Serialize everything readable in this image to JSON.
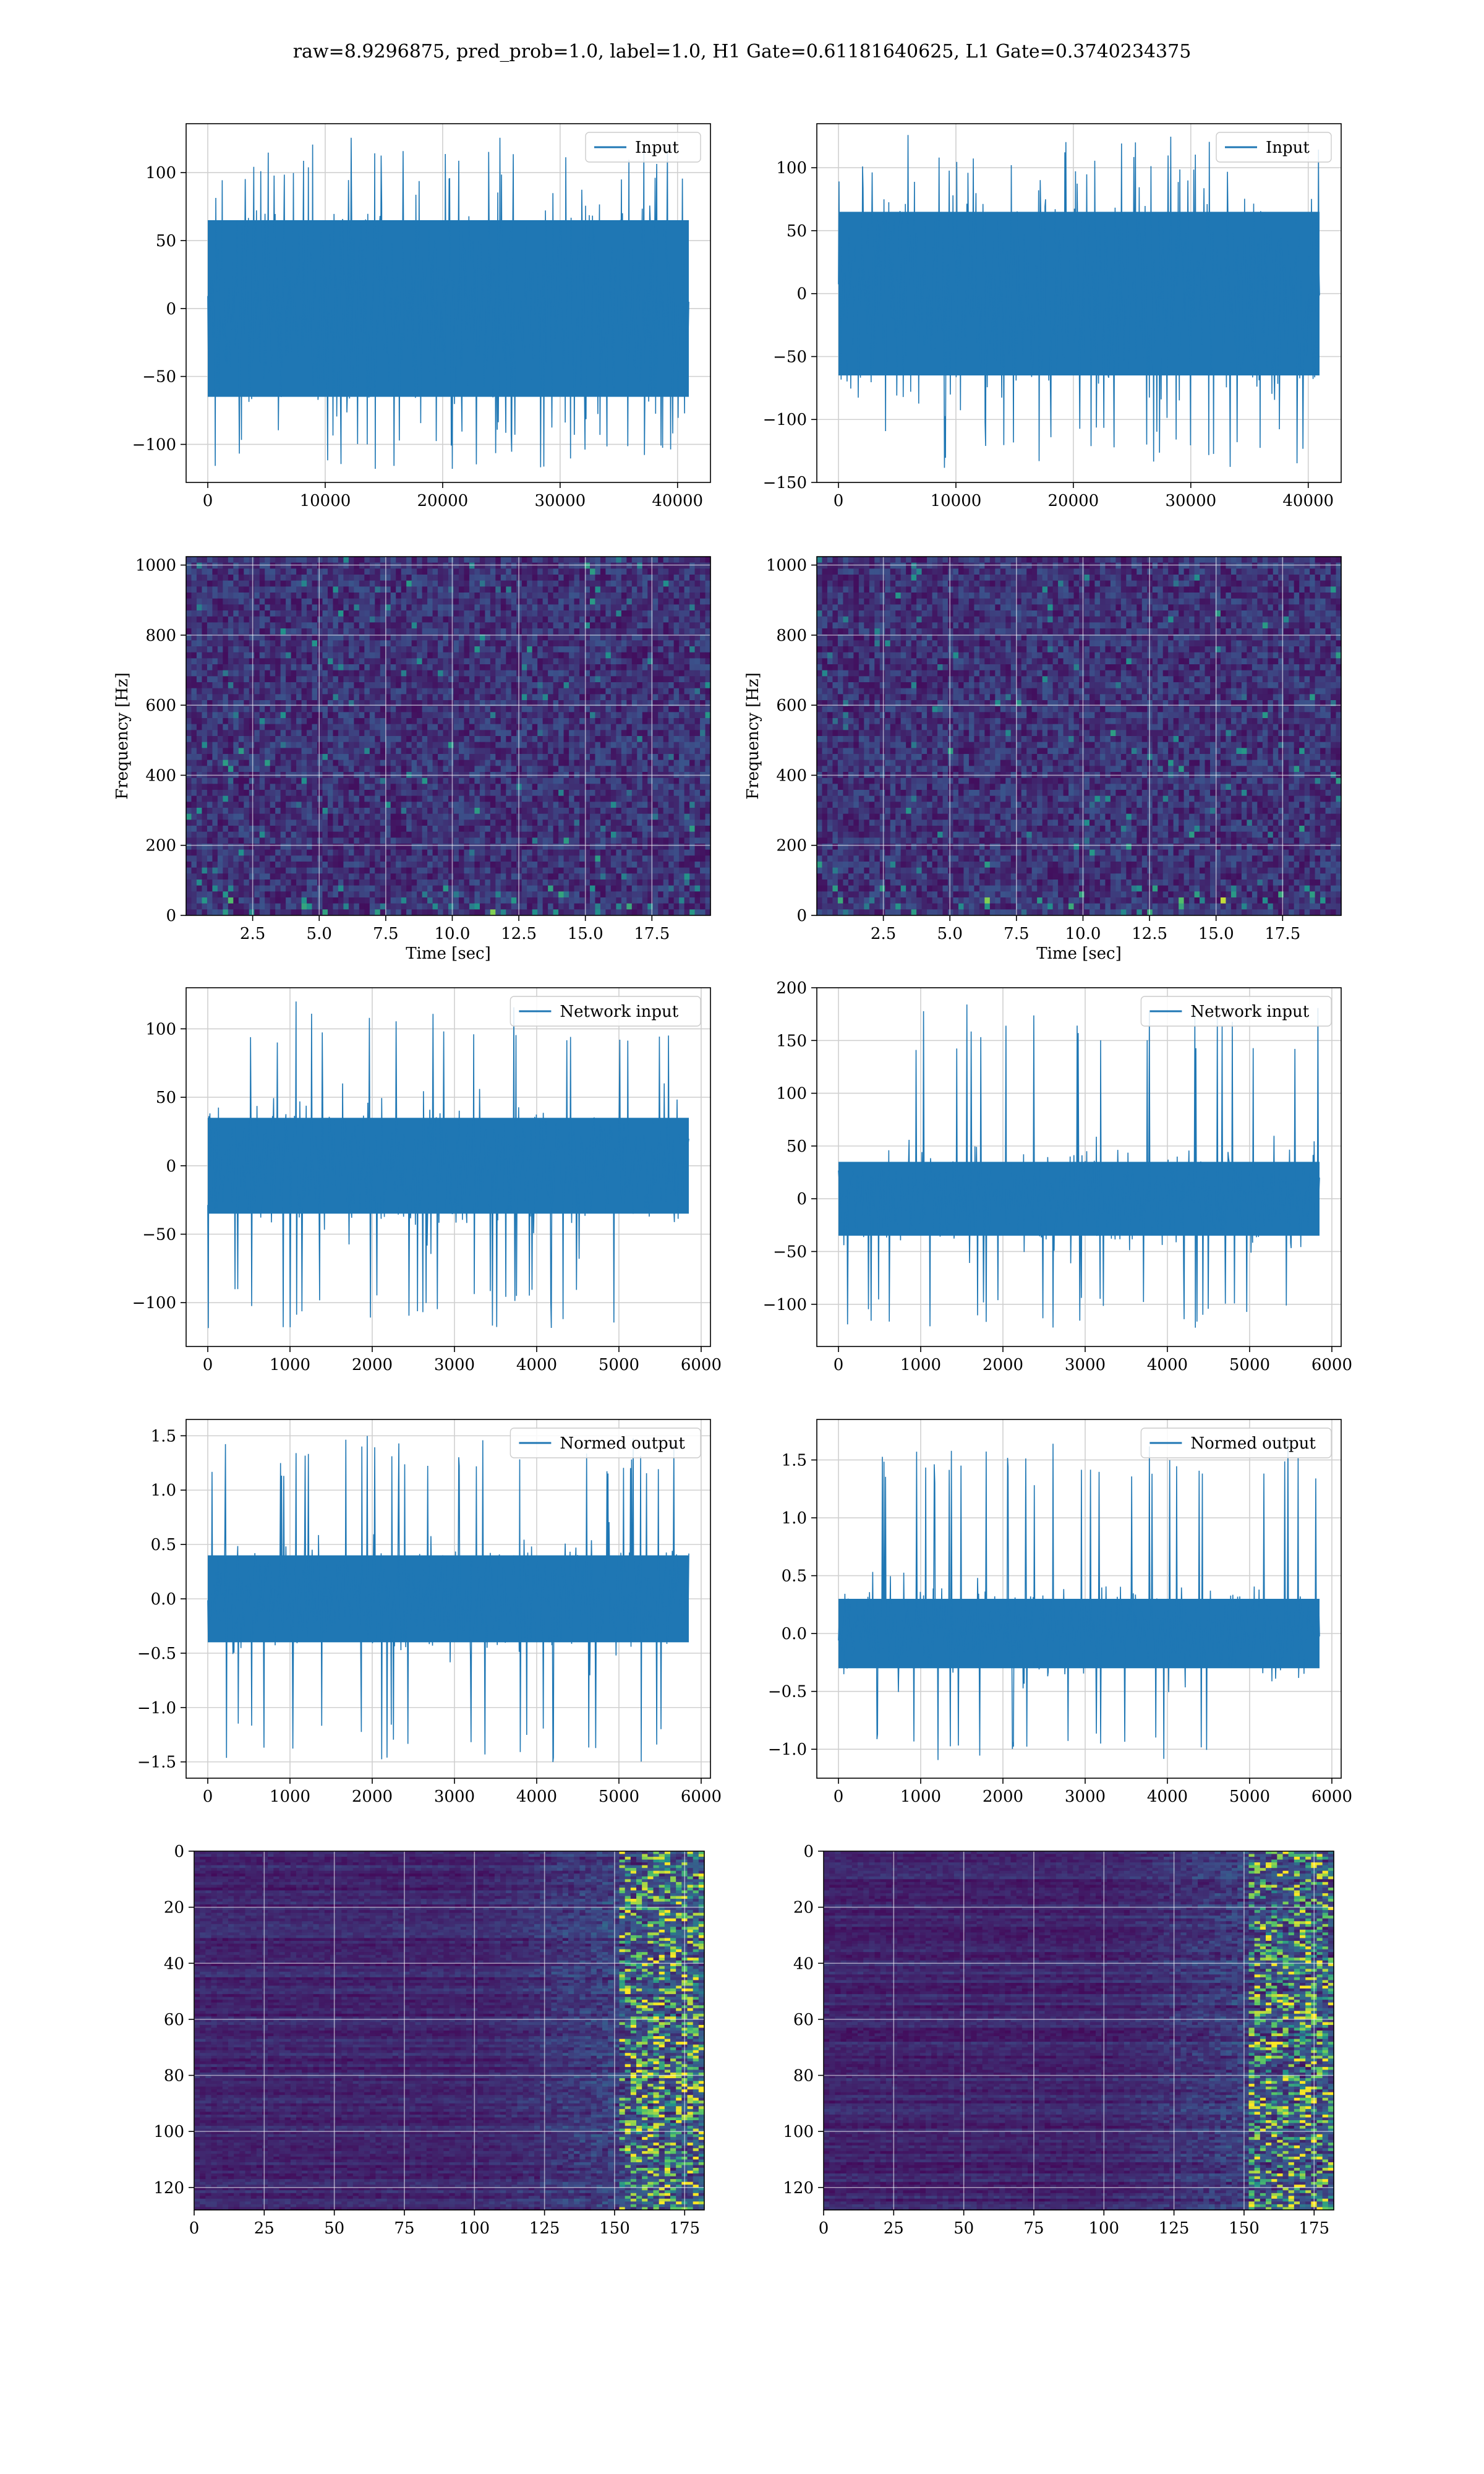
{
  "figure": {
    "suptitle": "raw=8.9296875, pred_prob=1.0, label=1.0, H1 Gate=0.61181640625, L1 Gate=0.3740234375"
  },
  "colors": {
    "line": "#1f77b4",
    "grid": "#d0d0d0",
    "viridis_low": "#440154",
    "viridis_high": "#fde725"
  },
  "chart_data": [
    {
      "type": "line",
      "id": "input-h1",
      "legend": "Input",
      "x_range": [
        0,
        40960
      ],
      "ylim": [
        -128,
        136
      ],
      "xticks": [
        0,
        10000,
        20000,
        30000,
        40000
      ],
      "yticks": [
        -100,
        -50,
        0,
        50,
        100
      ],
      "envelope": {
        "core_amplitude": 65,
        "peak_max": 126,
        "peak_min": -118
      },
      "grid": true,
      "legend_position": "upper right"
    },
    {
      "type": "line",
      "id": "input-l1",
      "legend": "Input",
      "x_range": [
        0,
        40960
      ],
      "ylim": [
        -150,
        135
      ],
      "xticks": [
        0,
        10000,
        20000,
        30000,
        40000
      ],
      "yticks": [
        -150,
        -100,
        -50,
        0,
        50,
        100
      ],
      "envelope": {
        "core_amplitude": 65,
        "peak_max": 126,
        "peak_min": -140
      },
      "grid": true,
      "legend_position": "upper right"
    },
    {
      "type": "heatmap",
      "id": "spectrogram-h1",
      "xlabel": "Time [sec]",
      "ylabel": "Frequency [Hz]",
      "xlim": [
        0,
        19.7
      ],
      "ylim": [
        0,
        1024
      ],
      "xticks": [
        2.5,
        5.0,
        7.5,
        10.0,
        12.5,
        15.0,
        17.5
      ],
      "yticks": [
        0,
        200,
        400,
        600,
        800,
        1000
      ],
      "colormap": "viridis",
      "grid": true
    },
    {
      "type": "heatmap",
      "id": "spectrogram-l1",
      "xlabel": "Time [sec]",
      "ylabel": "Frequency [Hz]",
      "xlim": [
        0,
        19.7
      ],
      "ylim": [
        0,
        1024
      ],
      "xticks": [
        2.5,
        5.0,
        7.5,
        10.0,
        12.5,
        15.0,
        17.5
      ],
      "yticks": [
        0,
        200,
        400,
        600,
        800,
        1000
      ],
      "colormap": "viridis",
      "grid": true
    },
    {
      "type": "line",
      "id": "network-input-h1",
      "legend": "Network input",
      "x_range": [
        0,
        5850
      ],
      "ylim": [
        -132,
        130
      ],
      "xticks": [
        0,
        1000,
        2000,
        3000,
        4000,
        5000,
        6000
      ],
      "yticks": [
        -100,
        -50,
        0,
        50,
        100
      ],
      "envelope": {
        "core_amplitude": 35,
        "peak_max": 120,
        "peak_min": -120
      },
      "grid": true,
      "legend_position": "upper right"
    },
    {
      "type": "line",
      "id": "network-input-l1",
      "legend": "Network input",
      "x_range": [
        0,
        5850
      ],
      "ylim": [
        -140,
        200
      ],
      "xticks": [
        0,
        1000,
        2000,
        3000,
        4000,
        5000,
        6000
      ],
      "yticks": [
        -100,
        -50,
        0,
        50,
        100,
        150,
        200
      ],
      "envelope": {
        "core_amplitude": 35,
        "peak_max": 185,
        "peak_min": -125
      },
      "grid": true,
      "legend_position": "upper right"
    },
    {
      "type": "line",
      "id": "normed-output-h1",
      "legend": "Normed output",
      "x_range": [
        0,
        5850
      ],
      "ylim": [
        -1.65,
        1.65
      ],
      "xticks": [
        0,
        1000,
        2000,
        3000,
        4000,
        5000,
        6000
      ],
      "yticks": [
        -1.5,
        -1.0,
        -0.5,
        0.0,
        0.5,
        1.0,
        1.5
      ],
      "envelope": {
        "core_amplitude": 0.4,
        "peak_max": 1.5,
        "peak_min": -1.52
      },
      "grid": true,
      "legend_position": "upper right"
    },
    {
      "type": "line",
      "id": "normed-output-l1",
      "legend": "Normed output",
      "x_range": [
        0,
        5850
      ],
      "ylim": [
        -1.25,
        1.85
      ],
      "xticks": [
        0,
        1000,
        2000,
        3000,
        4000,
        5000,
        6000
      ],
      "yticks": [
        -1.0,
        -0.5,
        0.0,
        0.5,
        1.0,
        1.5
      ],
      "envelope": {
        "core_amplitude": 0.3,
        "peak_max": 1.7,
        "peak_min": -1.13
      },
      "grid": true,
      "legend_position": "upper right"
    },
    {
      "type": "heatmap",
      "id": "feature-map-h1",
      "xlim": [
        0,
        182
      ],
      "ylim": [
        128,
        0
      ],
      "xticks": [
        0,
        25,
        50,
        75,
        100,
        125,
        150,
        175
      ],
      "yticks": [
        0,
        20,
        40,
        60,
        80,
        100,
        120
      ],
      "colormap": "viridis",
      "grid": true,
      "note_bright_region": [
        150,
        182
      ]
    },
    {
      "type": "heatmap",
      "id": "feature-map-l1",
      "xlim": [
        0,
        182
      ],
      "ylim": [
        128,
        0
      ],
      "xticks": [
        0,
        25,
        50,
        75,
        100,
        125,
        150,
        175
      ],
      "yticks": [
        0,
        20,
        40,
        60,
        80,
        100,
        120
      ],
      "colormap": "viridis",
      "grid": true,
      "note_bright_region": [
        150,
        182
      ]
    }
  ]
}
